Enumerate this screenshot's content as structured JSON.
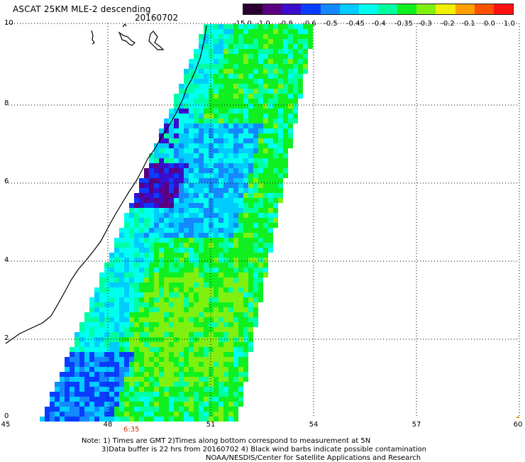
{
  "title": "ASCAT 25KM MLE-2 descending",
  "date": "20160702",
  "legend": {
    "colors": [
      "#2a0030",
      "#5a0080",
      "#3c0ccc",
      "#0a3cff",
      "#1488ff",
      "#00ccff",
      "#00ffee",
      "#00ffa0",
      "#10f020",
      "#80f010",
      "#f0f000",
      "#ffa000",
      "#ff5000",
      "#ff1010"
    ],
    "labels": [
      "-15.0",
      "-1.0",
      "-0.8",
      "-0.6",
      "-0.5",
      "-0.45",
      "-0.4",
      "-0.35",
      "-0.3",
      "-0.2",
      "-0.1",
      "0.0",
      "1.0"
    ]
  },
  "axes": {
    "lon_ticks": [
      "45",
      "48",
      "51",
      "54",
      "57",
      "60"
    ],
    "lat_ticks": [
      "10",
      "8",
      "6",
      "4",
      "2",
      "0"
    ]
  },
  "pass_time": "6:35",
  "notes": {
    "line1": "Note: 1) Times are GMT 2)Times along bottom correspond to measurement at 5N",
    "line2": "3)Data buffer is 22 hrs from 20160702 4) Black wind barbs indicate possible contamination",
    "line3": "NOAA/NESDIS/Center for Satellite Applications and Research"
  },
  "colors": {
    "grid": "#000000",
    "coastline": "#000000",
    "pass_time": "#cc3300"
  }
}
